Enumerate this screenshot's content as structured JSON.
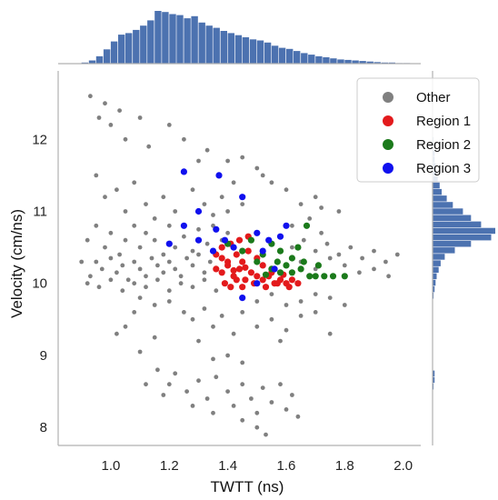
{
  "colors": {
    "Other": "#808080",
    "Region 1": "#e31a1c",
    "Region 2": "#1b7a1b",
    "Region 3": "#1010ee",
    "histogram": "#4c72b0",
    "spine": "#b0b0b0"
  },
  "chart_data": {
    "type": "scatter",
    "title": "",
    "xlabel": "TWTT (ns)",
    "ylabel": "Velocity (cm/ns)",
    "xlim": [
      0.82,
      2.06
    ],
    "ylim": [
      7.75,
      12.95
    ],
    "xticks": [
      "1.0",
      "1.2",
      "1.4",
      "1.6",
      "1.8",
      "2.0"
    ],
    "xtick_values": [
      1.0,
      1.2,
      1.4,
      1.6,
      1.8,
      2.0
    ],
    "yticks": [
      "8",
      "9",
      "10",
      "11",
      "12"
    ],
    "ytick_values": [
      8,
      9,
      10,
      11,
      12
    ],
    "grid": false,
    "legend": {
      "position": "top-right",
      "entries": [
        "Other",
        "Region 1",
        "Region 2",
        "Region 3"
      ]
    },
    "series": [
      {
        "name": "Other",
        "points": [
          [
            0.93,
            12.6
          ],
          [
            0.96,
            12.3
          ],
          [
            0.98,
            12.5
          ],
          [
            1.0,
            12.2
          ],
          [
            1.03,
            12.4
          ],
          [
            1.05,
            12.0
          ],
          [
            1.1,
            12.3
          ],
          [
            1.13,
            11.9
          ],
          [
            1.2,
            12.2
          ],
          [
            1.25,
            12.0
          ],
          [
            1.3,
            11.7
          ],
          [
            1.33,
            11.85
          ],
          [
            1.4,
            11.7
          ],
          [
            1.45,
            11.75
          ],
          [
            1.5,
            11.6
          ],
          [
            1.52,
            11.5
          ],
          [
            1.55,
            11.4
          ],
          [
            1.6,
            11.3
          ],
          [
            1.65,
            11.1
          ],
          [
            1.7,
            11.2
          ],
          [
            1.72,
            11.05
          ],
          [
            1.78,
            11.0
          ],
          [
            0.95,
            11.5
          ],
          [
            0.98,
            11.2
          ],
          [
            1.02,
            11.3
          ],
          [
            1.05,
            11.0
          ],
          [
            1.08,
            11.4
          ],
          [
            1.12,
            11.1
          ],
          [
            1.15,
            10.9
          ],
          [
            1.18,
            11.2
          ],
          [
            1.22,
            11.0
          ],
          [
            1.28,
            11.3
          ],
          [
            1.32,
            11.1
          ],
          [
            1.35,
            10.95
          ],
          [
            1.38,
            11.2
          ],
          [
            1.4,
            11.0
          ],
          [
            1.42,
            11.4
          ],
          [
            1.45,
            11.1
          ],
          [
            0.92,
            10.6
          ],
          [
            0.95,
            10.8
          ],
          [
            0.98,
            10.5
          ],
          [
            1.0,
            10.7
          ],
          [
            1.03,
            10.4
          ],
          [
            1.05,
            10.6
          ],
          [
            1.08,
            10.8
          ],
          [
            1.1,
            10.5
          ],
          [
            1.12,
            10.7
          ],
          [
            1.15,
            10.6
          ],
          [
            1.18,
            10.4
          ],
          [
            1.2,
            10.8
          ],
          [
            1.22,
            10.5
          ],
          [
            1.25,
            10.65
          ],
          [
            1.28,
            10.45
          ],
          [
            1.3,
            10.75
          ],
          [
            1.33,
            10.55
          ],
          [
            1.35,
            10.8
          ],
          [
            1.38,
            10.6
          ],
          [
            1.4,
            10.7
          ],
          [
            0.9,
            10.3
          ],
          [
            0.93,
            10.1
          ],
          [
            0.95,
            10.3
          ],
          [
            0.97,
            10.2
          ],
          [
            1.0,
            10.35
          ],
          [
            1.02,
            10.15
          ],
          [
            1.04,
            10.25
          ],
          [
            1.06,
            10.05
          ],
          [
            1.08,
            10.3
          ],
          [
            1.1,
            10.2
          ],
          [
            1.12,
            10.1
          ],
          [
            1.14,
            10.35
          ],
          [
            1.16,
            10.25
          ],
          [
            1.18,
            10.15
          ],
          [
            1.2,
            10.3
          ],
          [
            1.22,
            10.2
          ],
          [
            1.24,
            10.1
          ],
          [
            1.26,
            10.35
          ],
          [
            1.28,
            10.25
          ],
          [
            1.3,
            10.4
          ],
          [
            1.32,
            10.15
          ],
          [
            1.34,
            10.3
          ],
          [
            1.36,
            10.2
          ],
          [
            0.92,
            10.0
          ],
          [
            0.96,
            9.95
          ],
          [
            1.0,
            10.05
          ],
          [
            1.04,
            9.9
          ],
          [
            1.08,
            10.0
          ],
          [
            1.12,
            9.95
          ],
          [
            1.16,
            10.05
          ],
          [
            1.2,
            9.9
          ],
          [
            1.24,
            10.0
          ],
          [
            1.28,
            9.95
          ],
          [
            1.32,
            10.05
          ],
          [
            1.36,
            9.9
          ],
          [
            1.1,
            9.8
          ],
          [
            1.15,
            9.7
          ],
          [
            1.2,
            9.75
          ],
          [
            1.25,
            9.6
          ],
          [
            1.28,
            9.5
          ],
          [
            1.32,
            9.65
          ],
          [
            1.35,
            9.4
          ],
          [
            1.3,
            9.2
          ],
          [
            1.38,
            9.55
          ],
          [
            1.42,
            9.3
          ],
          [
            1.45,
            9.6
          ],
          [
            1.5,
            9.4
          ],
          [
            1.55,
            9.5
          ],
          [
            1.58,
            9.2
          ],
          [
            1.6,
            9.35
          ],
          [
            1.65,
            9.55
          ],
          [
            1.7,
            9.6
          ],
          [
            1.75,
            9.3
          ],
          [
            1.4,
            9.0
          ],
          [
            1.45,
            8.9
          ],
          [
            1.35,
            8.95
          ],
          [
            1.16,
            8.8
          ],
          [
            1.2,
            8.6
          ],
          [
            1.22,
            8.75
          ],
          [
            1.26,
            8.5
          ],
          [
            1.3,
            8.65
          ],
          [
            1.33,
            8.4
          ],
          [
            1.36,
            8.7
          ],
          [
            1.4,
            8.5
          ],
          [
            1.42,
            8.3
          ],
          [
            1.45,
            8.6
          ],
          [
            1.48,
            8.4
          ],
          [
            1.5,
            8.2
          ],
          [
            1.52,
            8.55
          ],
          [
            1.55,
            8.35
          ],
          [
            1.58,
            8.6
          ],
          [
            1.6,
            8.25
          ],
          [
            1.62,
            8.45
          ],
          [
            1.64,
            8.15
          ],
          [
            1.5,
            8.0
          ],
          [
            1.53,
            7.9
          ],
          [
            1.45,
            8.1
          ],
          [
            1.35,
            8.2
          ],
          [
            1.28,
            8.3
          ],
          [
            1.18,
            8.45
          ],
          [
            1.12,
            8.6
          ],
          [
            1.62,
            10.5
          ],
          [
            1.66,
            10.6
          ],
          [
            1.7,
            10.45
          ],
          [
            1.74,
            10.55
          ],
          [
            1.78,
            10.4
          ],
          [
            1.82,
            10.5
          ],
          [
            1.86,
            10.35
          ],
          [
            1.9,
            10.45
          ],
          [
            1.94,
            10.3
          ],
          [
            1.98,
            10.4
          ],
          [
            1.65,
            10.3
          ],
          [
            1.7,
            10.2
          ],
          [
            1.75,
            10.35
          ],
          [
            1.8,
            10.25
          ],
          [
            1.85,
            10.15
          ],
          [
            1.9,
            10.2
          ],
          [
            1.95,
            10.1
          ],
          [
            1.62,
            10.8
          ],
          [
            1.68,
            10.9
          ],
          [
            1.72,
            10.7
          ],
          [
            1.05,
            9.4
          ],
          [
            1.08,
            9.6
          ],
          [
            1.02,
            9.3
          ],
          [
            1.1,
            9.05
          ],
          [
            1.15,
            9.25
          ],
          [
            1.45,
            9.8
          ],
          [
            1.5,
            9.75
          ],
          [
            1.55,
            9.85
          ],
          [
            1.6,
            9.7
          ],
          [
            1.65,
            9.75
          ],
          [
            1.7,
            9.85
          ],
          [
            1.75,
            9.8
          ],
          [
            1.8,
            9.7
          ]
        ]
      },
      {
        "name": "Region 1",
        "points": [
          [
            1.36,
            10.2
          ],
          [
            1.38,
            10.15
          ],
          [
            1.4,
            10.25
          ],
          [
            1.42,
            10.1
          ],
          [
            1.44,
            10.2
          ],
          [
            1.46,
            10.05
          ],
          [
            1.48,
            10.15
          ],
          [
            1.5,
            10.1
          ],
          [
            1.52,
            10.05
          ],
          [
            1.54,
            10.1
          ],
          [
            1.56,
            10.0
          ],
          [
            1.58,
            10.05
          ],
          [
            1.6,
            10.0
          ],
          [
            1.62,
            10.05
          ],
          [
            1.64,
            10.0
          ],
          [
            1.38,
            10.35
          ],
          [
            1.4,
            10.3
          ],
          [
            1.43,
            10.4
          ],
          [
            1.45,
            10.3
          ],
          [
            1.47,
            10.45
          ],
          [
            1.5,
            10.35
          ],
          [
            1.52,
            10.25
          ],
          [
            1.41,
            10.55
          ],
          [
            1.44,
            10.6
          ],
          [
            1.47,
            10.65
          ],
          [
            1.38,
            10.5
          ],
          [
            1.36,
            10.4
          ],
          [
            1.39,
            10.0
          ],
          [
            1.41,
            9.95
          ],
          [
            1.43,
            10.05
          ],
          [
            1.45,
            9.95
          ],
          [
            1.49,
            10.0
          ],
          [
            1.53,
            9.95
          ],
          [
            1.57,
            10.0
          ],
          [
            1.61,
            9.95
          ],
          [
            1.55,
            10.15
          ],
          [
            1.59,
            10.12
          ],
          [
            1.42,
            10.18
          ],
          [
            1.46,
            10.22
          ]
        ]
      },
      {
        "name": "Region 2",
        "points": [
          [
            1.4,
            10.55
          ],
          [
            1.45,
            10.45
          ],
          [
            1.5,
            10.3
          ],
          [
            1.52,
            10.4
          ],
          [
            1.55,
            10.2
          ],
          [
            1.57,
            10.3
          ],
          [
            1.6,
            10.25
          ],
          [
            1.62,
            10.15
          ],
          [
            1.65,
            10.2
          ],
          [
            1.68,
            10.1
          ],
          [
            1.7,
            10.1
          ],
          [
            1.73,
            10.1
          ],
          [
            1.76,
            10.1
          ],
          [
            1.8,
            10.1
          ],
          [
            1.58,
            10.45
          ],
          [
            1.64,
            10.5
          ],
          [
            1.67,
            10.8
          ],
          [
            1.55,
            10.55
          ],
          [
            1.48,
            10.6
          ],
          [
            1.62,
            10.35
          ],
          [
            1.66,
            10.3
          ],
          [
            1.53,
            10.12
          ],
          [
            1.58,
            10.15
          ],
          [
            1.71,
            10.25
          ]
        ]
      },
      {
        "name": "Region 3",
        "points": [
          [
            1.25,
            11.55
          ],
          [
            1.37,
            11.5
          ],
          [
            1.45,
            11.2
          ],
          [
            1.3,
            11.0
          ],
          [
            1.25,
            10.8
          ],
          [
            1.36,
            10.75
          ],
          [
            1.39,
            10.6
          ],
          [
            1.3,
            10.6
          ],
          [
            1.2,
            10.55
          ],
          [
            1.35,
            10.45
          ],
          [
            1.42,
            10.5
          ],
          [
            1.5,
            10.7
          ],
          [
            1.54,
            10.6
          ],
          [
            1.58,
            10.65
          ],
          [
            1.52,
            10.45
          ],
          [
            1.5,
            10.0
          ],
          [
            1.45,
            9.8
          ],
          [
            1.56,
            10.2
          ],
          [
            1.6,
            10.8
          ]
        ]
      }
    ],
    "marginal_x_hist": {
      "bin_start": 0.9,
      "bin_width": 0.025,
      "counts": [
        2,
        6,
        14,
        27,
        42,
        55,
        58,
        64,
        72,
        82,
        100,
        98,
        94,
        92,
        86,
        90,
        78,
        72,
        68,
        62,
        58,
        54,
        50,
        46,
        44,
        40,
        34,
        30,
        28,
        24,
        20,
        17,
        14,
        12,
        10,
        8,
        7,
        6,
        5,
        4,
        3,
        2,
        2,
        1,
        1
      ]
    },
    "marginal_y_hist": {
      "bin_start": 7.8,
      "bin_width": 0.09,
      "counts": [
        0,
        0,
        0,
        0,
        0,
        0,
        0,
        0,
        1,
        2,
        2,
        0,
        0,
        0,
        0,
        0,
        0,
        0,
        0,
        0,
        0,
        0,
        1,
        2,
        3,
        4,
        6,
        8,
        12,
        22,
        38,
        58,
        62,
        48,
        38,
        30,
        20,
        14,
        9,
        7,
        5,
        4,
        3,
        2,
        2,
        1,
        1,
        0,
        0,
        0,
        0,
        0,
        0,
        0,
        0,
        0,
        0
      ]
    }
  }
}
